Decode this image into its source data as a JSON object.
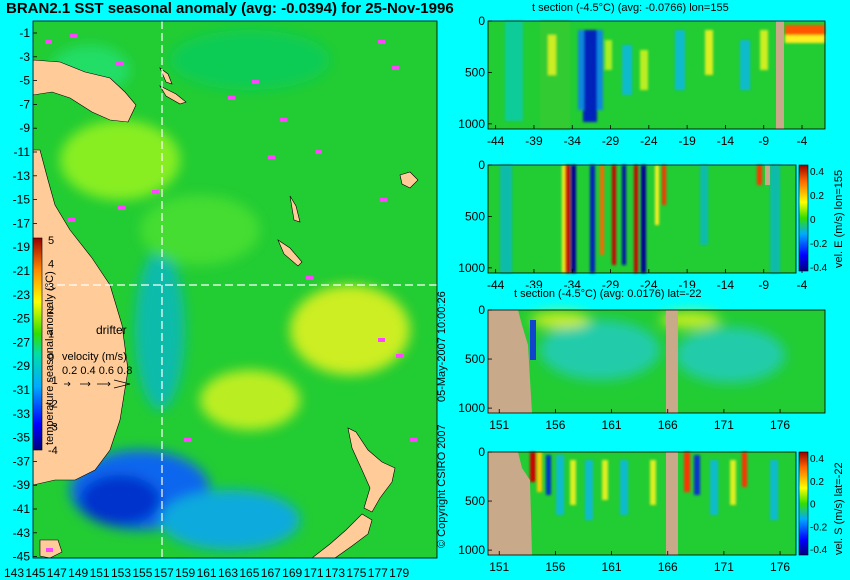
{
  "main_title": "BRAN2.1 SST seasonal anomaly (avg: -0.0394) for 25-Nov-1996",
  "copyright": "© Copyright CSIRO 2007",
  "timestamp": "05-May-2007 10:00:26",
  "map": {
    "lat_ticks": [
      "-1",
      "-3",
      "-5",
      "-7",
      "-9",
      "-11",
      "-13",
      "-15",
      "-17",
      "-19",
      "-21",
      "-23",
      "-25",
      "-27",
      "-29",
      "-31",
      "-33",
      "-35",
      "-37",
      "-39",
      "-41",
      "-43",
      "-45"
    ],
    "lon_ticks": [
      "143",
      "145",
      "147",
      "149",
      "151",
      "153",
      "155",
      "157",
      "159",
      "161",
      "163",
      "165",
      "167",
      "169",
      "171",
      "173",
      "175",
      "177",
      "179"
    ],
    "section_lon": 155,
    "section_lat": -22,
    "drifter_label": "drifter",
    "velocity_label": "velocity (m/s)",
    "velocity_ticks": [
      "0.2",
      "0.4",
      "0.6",
      "0.8"
    ],
    "colorbar_label": "temperature seasonal anomaly (°C)",
    "colorbar_ticks": [
      "5",
      "4",
      "3",
      "2",
      "1",
      "0",
      "-1",
      "-2",
      "-3",
      "-4"
    ],
    "colorbar_range": [
      -4,
      5
    ]
  },
  "sections": [
    {
      "title": "t section (-4.5°C) (avg: -0.0766) lon=155",
      "x_ticks": [
        "-44",
        "-39",
        "-34",
        "-29",
        "-24",
        "-19",
        "-14",
        "-9",
        "-4"
      ],
      "y_ticks": [
        "0",
        "500",
        "1000"
      ],
      "side_label": "",
      "colorbar": false
    },
    {
      "title": "",
      "x_ticks": [
        "-44",
        "-39",
        "-34",
        "-29",
        "-24",
        "-19",
        "-14",
        "-9",
        "-4"
      ],
      "y_ticks": [
        "0",
        "500",
        "1000"
      ],
      "side_label": "vel. E (m/s) lon=155",
      "colorbar": true,
      "cb_ticks": [
        "0.4",
        "0.2",
        "0",
        "-0.2",
        "-0.4"
      ]
    },
    {
      "title": "t section (-4.5°C) (avg: 0.0176) lat=-22",
      "x_ticks": [
        "151",
        "156",
        "161",
        "166",
        "171",
        "176"
      ],
      "y_ticks": [
        "0",
        "500",
        "1000"
      ],
      "side_label": "",
      "colorbar": false
    },
    {
      "title": "",
      "x_ticks": [
        "151",
        "156",
        "161",
        "166",
        "171",
        "176"
      ],
      "y_ticks": [
        "0",
        "500",
        "1000"
      ],
      "side_label": "vel. S (m/s) lat=-22",
      "colorbar": true,
      "cb_ticks": [
        "0.4",
        "0.2",
        "0",
        "-0.2",
        "-0.4"
      ]
    }
  ],
  "colors": {
    "background": "#00ffff",
    "land": "#d2b48c",
    "section_land": "#c8a98a",
    "drifter": "#ff44ff",
    "ocean_base": "#22cc33"
  },
  "chart_data": [
    {
      "type": "heatmap",
      "title": "BRAN2.1 SST seasonal anomaly (avg: -0.0394) for 25-Nov-1996",
      "xlim": [
        143,
        180
      ],
      "ylim": [
        -45,
        0
      ],
      "clim": [
        -4,
        5
      ]
    },
    {
      "type": "heatmap",
      "title": "t section (-4.5°C) (avg: -0.0766) lon=155",
      "xlim": [
        -45,
        -1
      ],
      "ylim": [
        1050,
        0
      ]
    },
    {
      "type": "heatmap",
      "xlim": [
        -45,
        -1
      ],
      "ylim": [
        1050,
        0
      ],
      "clim": [
        -0.4,
        0.4
      ]
    },
    {
      "type": "heatmap",
      "title": "t section (-4.5°C) (avg: 0.0176) lat=-22",
      "xlim": [
        150,
        180
      ],
      "ylim": [
        1050,
        0
      ]
    },
    {
      "type": "heatmap",
      "xlim": [
        150,
        180
      ],
      "ylim": [
        1050,
        0
      ],
      "clim": [
        -0.4,
        0.4
      ]
    }
  ]
}
